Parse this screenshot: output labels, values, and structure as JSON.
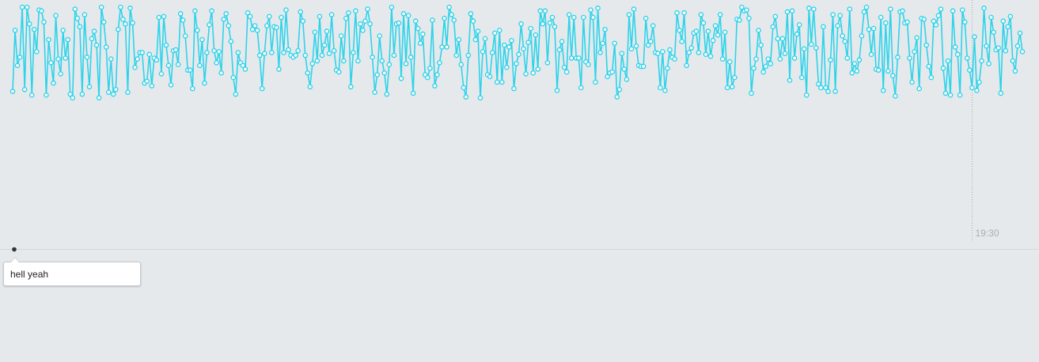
{
  "colors": {
    "background": "#e6e9ec",
    "series_line": "#2ed3ea",
    "marker_fill": "#ffffff",
    "divider": "#d6d9dc",
    "marker_line": "#a9adb1",
    "tick_label": "#a9adb1",
    "annotation_dot": "#333333"
  },
  "chart_data": {
    "type": "line",
    "title": "",
    "xlabel": "",
    "ylabel": "",
    "x_tick_labels": [
      "19:30"
    ],
    "x_tick_at_point_index": 400,
    "grid": false,
    "legend": "none",
    "ylim": [
      0,
      1
    ],
    "series": [
      {
        "values": [
          0.08,
          0.74,
          0.36,
          0.45,
          0.99,
          0.1,
          0.99,
          0.81,
          0.04,
          0.75,
          0.51,
          0.96,
          0.95,
          0.83,
          0.04,
          0.64,
          0.39,
          0.17,
          0.9,
          0.43,
          0.27,
          0.74,
          0.44,
          0.64,
          0.05,
          0.01,
          0.97,
          0.87,
          0.78,
          0.05,
          0.91,
          0.45,
          0.13,
          0.65,
          0.73,
          0.58,
          0.01,
          0.99,
          0.83,
          0.56,
          0.07,
          0.43,
          0.05,
          0.1,
          0.75,
          0.99,
          0.86,
          0.81,
          0.07,
          0.98,
          0.82,
          0.34,
          0.43,
          0.5,
          0.5,
          0.17,
          0.19,
          0.48,
          0.14,
          0.44,
          0.42,
          0.88,
          0.27,
          0.89,
          0.58,
          0.36,
          0.15,
          0.52,
          0.53,
          0.37,
          0.92,
          0.85,
          0.68,
          0.31,
          0.31,
          0.11,
          0.95,
          0.74,
          0.36,
          0.64,
          0.17,
          0.5,
          0.8,
          0.95,
          0.52,
          0.39,
          0.51,
          0.28,
          0.86,
          0.92,
          0.79,
          0.62,
          0.23,
          0.05,
          0.5,
          0.39,
          0.36,
          0.32,
          0.93,
          0.89,
          0.75,
          0.79,
          0.74,
          0.47,
          0.11,
          0.49,
          0.79,
          0.89,
          0.5,
          0.78,
          0.77,
          0.32,
          0.88,
          0.5,
          0.96,
          0.53,
          0.47,
          0.45,
          0.47,
          0.52,
          0.94,
          0.84,
          0.47,
          0.28,
          0.13,
          0.38,
          0.72,
          0.41,
          0.89,
          0.47,
          0.58,
          0.73,
          0.49,
          0.91,
          0.52,
          0.31,
          0.29,
          0.68,
          0.41,
          0.87,
          0.93,
          0.13,
          0.5,
          0.95,
          0.41,
          0.81,
          0.74,
          0.84,
          0.97,
          0.81,
          0.45,
          0.07,
          0.26,
          0.68,
          0.41,
          0.28,
          0.05,
          0.37,
          0.99,
          0.47,
          0.81,
          0.82,
          0.22,
          0.92,
          0.38,
          0.9,
          0.45,
          0.06,
          0.84,
          0.76,
          0.6,
          0.7,
          0.26,
          0.23,
          0.33,
          0.85,
          0.14,
          0.26,
          0.39,
          0.56,
          0.87,
          0.56,
          0.99,
          0.91,
          0.85,
          0.47,
          0.64,
          0.37,
          0.12,
          0.02,
          0.47,
          0.92,
          0.84,
          0.64,
          0.73,
          0.01,
          0.51,
          0.65,
          0.26,
          0.24,
          0.5,
          0.71,
          0.18,
          0.74,
          0.18,
          0.58,
          0.34,
          0.56,
          0.63,
          0.11,
          0.38,
          0.48,
          0.81,
          0.54,
          0.27,
          0.61,
          0.76,
          0.28,
          0.69,
          0.32,
          0.95,
          0.81,
          0.95,
          0.39,
          0.82,
          0.88,
          0.78,
          0.09,
          0.53,
          0.62,
          0.34,
          0.29,
          0.91,
          0.44,
          0.88,
          0.44,
          0.44,
          0.12,
          0.88,
          0.4,
          0.37,
          0.96,
          0.88,
          0.18,
          0.98,
          0.5,
          0.6,
          0.75,
          0.24,
          0.28,
          0.29,
          0.6,
          0.02,
          0.1,
          0.49,
          0.32,
          0.21,
          0.91,
          0.54,
          0.97,
          0.57,
          0.36,
          0.35,
          0.35,
          0.87,
          0.58,
          0.62,
          0.79,
          0.5,
          0.49,
          0.12,
          0.51,
          0.09,
          0.33,
          0.53,
          0.45,
          0.43,
          0.93,
          0.74,
          0.62,
          0.93,
          0.36,
          0.5,
          0.55,
          0.71,
          0.73,
          0.5,
          0.91,
          0.82,
          0.48,
          0.73,
          0.46,
          0.63,
          0.79,
          0.69,
          0.91,
          0.43,
          0.72,
          0.12,
          0.4,
          0.13,
          0.23,
          0.86,
          0.85,
          0.99,
          0.95,
          0.96,
          0.87,
          0.06,
          0.33,
          0.43,
          0.74,
          0.58,
          0.29,
          0.35,
          0.43,
          0.38,
          0.78,
          0.89,
          0.65,
          0.43,
          0.65,
          0.49,
          0.94,
          0.2,
          0.95,
          0.44,
          0.7,
          0.8,
          0.23,
          0.54,
          0.04,
          0.98,
          0.59,
          0.97,
          0.55,
          0.16,
          0.12,
          0.78,
          0.12,
          0.08,
          0.42,
          0.91,
          0.08,
          0.79,
          0.9,
          0.68,
          0.62,
          0.44,
          0.97,
          0.28,
          0.38,
          0.3,
          0.42,
          0.68,
          0.94,
          0.99,
          0.75,
          0.48,
          0.76,
          0.32,
          0.31,
          0.88,
          0.09,
          0.82,
          0.3,
          0.97,
          0.25,
          0.03,
          0.45,
          0.94,
          0.95,
          0.82,
          0.83,
          0.44,
          0.18,
          0.51,
          0.66,
          0.11,
          0.87,
          0.86,
          0.58,
          0.35,
          0.23,
          0.84,
          0.8,
          0.9,
          0.97,
          0.33,
          0.06,
          0.41,
          0.04,
          0.95,
          0.56,
          0.48,
          0.04,
          0.96,
          0.83,
          0.44,
          0.31,
          0.12,
          0.67,
          0.09,
          0.18,
          0.41,
          0.98,
          0.57,
          0.38,
          0.88,
          0.72,
          0.53,
          0.55,
          0.06,
          0.84,
          0.52,
          0.78,
          0.89,
          0.41,
          0.3,
          0.57,
          0.71,
          0.51
        ]
      }
    ],
    "annotations": [
      {
        "text": "hell yeah"
      }
    ]
  }
}
